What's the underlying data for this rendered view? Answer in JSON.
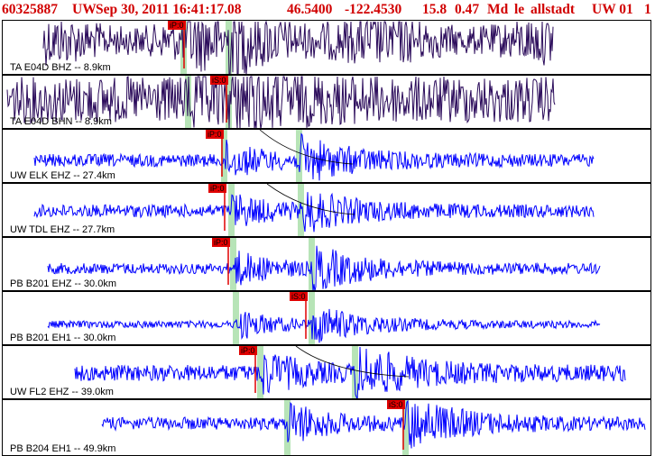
{
  "header": {
    "event_id": "60325887",
    "network": "UW",
    "datetime": "Sep 30, 2011 16:41:17.08",
    "latitude": "46.5400",
    "longitude": "-122.4530",
    "depth": "15.8",
    "magnitude": "0.47",
    "mag_type": "Md",
    "event_type": "le",
    "analyst": "allstadt",
    "agency_version": "UW 01",
    "trailing": "1"
  },
  "colors": {
    "header_text": "#d10000",
    "trace_dark": "#2a0a5a",
    "trace_blue": "#0000ff",
    "pick_marker": "#e00000",
    "pick_window": "#b7e4b7",
    "panel_border": "#000000"
  },
  "panels": [
    {
      "station_label": "TA E04D BHZ -- 8.9km",
      "trace_color": "dark",
      "pick_label": "iP:0",
      "picks": [
        {
          "label": "iP:0"
        }
      ],
      "windows": 2,
      "has_moveout_curve": false
    },
    {
      "station_label": "TA E04D BHN -- 8.9km",
      "trace_color": "dark",
      "pick_label": "iS:0",
      "picks": [
        {
          "label": "iS:0"
        }
      ],
      "windows": 2,
      "has_moveout_curve": false
    },
    {
      "station_label": "UW ELK EHZ -- 27.4km",
      "trace_color": "blue",
      "pick_label": "iP:0",
      "picks": [
        {
          "label": "iP:0"
        }
      ],
      "windows": 2,
      "has_moveout_curve": true
    },
    {
      "station_label": "UW TDL EHZ -- 27.7km",
      "trace_color": "blue",
      "pick_label": "iP:0",
      "picks": [
        {
          "label": "iP:0"
        }
      ],
      "windows": 2,
      "has_moveout_curve": true
    },
    {
      "station_label": "PB B201 EHZ -- 30.0km",
      "trace_color": "blue",
      "pick_label": "iP:0",
      "picks": [
        {
          "label": "iP:0"
        }
      ],
      "windows": 2,
      "has_moveout_curve": false
    },
    {
      "station_label": "PB B201 EH1 -- 30.0km",
      "trace_color": "blue",
      "pick_label": "iS:0",
      "picks": [
        {
          "label": "iS:0"
        }
      ],
      "windows": 2,
      "has_moveout_curve": false
    },
    {
      "station_label": "UW FL2 EHZ -- 39.0km",
      "trace_color": "blue",
      "pick_label": "iP:0",
      "picks": [
        {
          "label": "iP:0"
        }
      ],
      "windows": 2,
      "has_moveout_curve": true
    },
    {
      "station_label": "PB B204 EH1 -- 49.9km",
      "trace_color": "blue",
      "pick_label": "iS:0",
      "picks": [
        {
          "label": "iS:0"
        }
      ],
      "windows": 2,
      "has_moveout_curve": false
    }
  ]
}
